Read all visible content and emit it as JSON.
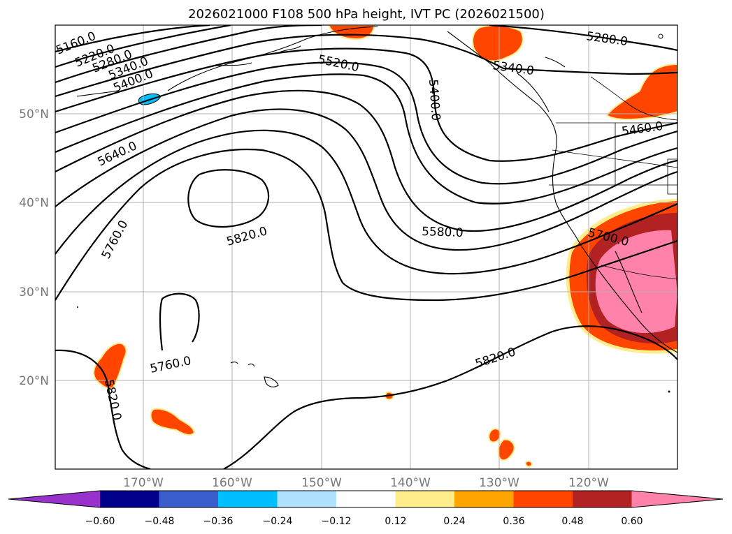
{
  "title": "2026021000 F108 500 hPa height, IVT PC (2026021500)",
  "lon_ticks": [
    "170°W",
    "160°W",
    "150°W",
    "140°W",
    "130°W",
    "120°W"
  ],
  "lat_ticks": [
    "20°N",
    "30°N",
    "40°N",
    "50°N"
  ],
  "contour_labels": [
    "5160.0",
    "5220.0",
    "5280.0",
    "5340.0",
    "5400.0",
    "5520.0",
    "5400.0",
    "5640.0",
    "5760.0",
    "5820.0",
    "5580.0",
    "5700.0",
    "5460.0",
    "5280.0",
    "5340.0",
    "5820.0",
    "5760.0",
    "5820.0"
  ],
  "colorbar": {
    "ticks": [
      "−0.60",
      "−0.48",
      "−0.36",
      "−0.24",
      "−0.12",
      "0.12",
      "0.24",
      "0.36",
      "0.48",
      "0.60"
    ],
    "colors": [
      "#9932cc",
      "#00008b",
      "#3a5fcd",
      "#00bfff",
      "#b0e2ff",
      "#ffffff",
      "#ffec8b",
      "#ffa500",
      "#ff4500",
      "#b22222",
      "#ff82ab"
    ]
  }
}
